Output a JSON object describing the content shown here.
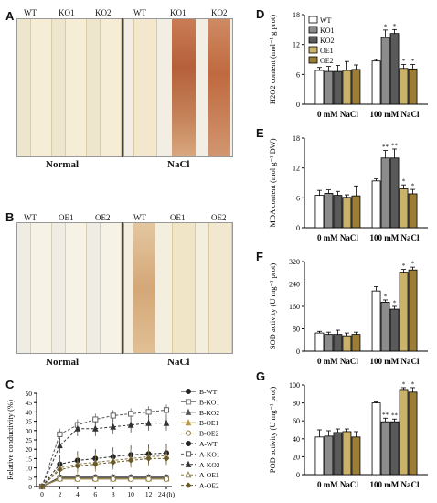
{
  "panelA": {
    "letter": "A",
    "left_labels": [
      "WT",
      "KO1",
      "KO2"
    ],
    "right_labels": [
      "WT",
      "KO1",
      "KO2"
    ],
    "left_caption": "Normal",
    "right_caption": "NaCl"
  },
  "panelB": {
    "letter": "B",
    "left_labels": [
      "WT",
      "OE1",
      "OE2"
    ],
    "right_labels": [
      "WT",
      "OE1",
      "OE2"
    ],
    "left_caption": "Normal",
    "right_caption": "NaCl"
  },
  "colors": {
    "white_bar": "#ffffff",
    "ko1": "#8c8c8c",
    "ko2": "#5a5a5a",
    "oe1": "#cbb26a",
    "oe2": "#9c7d35",
    "normal_leaf": "#f3ecd9",
    "nacl_leaf_bg": "#f1e3c6",
    "stain": "#b0542a"
  },
  "chart_data": [
    {
      "panel": "C",
      "type": "line",
      "ylabel": "Relative conductivity (%)",
      "x_ticks": [
        "0",
        "2",
        "4",
        "6",
        "8",
        "10",
        "12",
        "24 (h)"
      ],
      "x": [
        0,
        2,
        4,
        6,
        8,
        10,
        12,
        24
      ],
      "ylim": [
        0,
        50
      ],
      "y_ticks": [
        "0",
        "5",
        "10",
        "15",
        "20",
        "25",
        "30",
        "35",
        "40",
        "45",
        "50"
      ],
      "series": [
        {
          "name": "B-WT",
          "values": [
            0,
            5,
            5,
            5,
            5,
            5,
            5,
            5
          ],
          "marker": "filled-circle",
          "dash": false,
          "color": "#222"
        },
        {
          "name": "B-KO1",
          "values": [
            0,
            4.5,
            4.5,
            4.5,
            4.5,
            4.5,
            4.5,
            4.5
          ],
          "marker": "open-square",
          "dash": false,
          "color": "#777"
        },
        {
          "name": "B-KO2",
          "values": [
            0,
            4.8,
            4.8,
            4.8,
            4.8,
            4.8,
            4.8,
            4.8
          ],
          "marker": "filled-triangle",
          "dash": false,
          "color": "#555"
        },
        {
          "name": "B-OE1",
          "values": [
            0,
            4.2,
            4.2,
            4.2,
            4.2,
            4.2,
            4.2,
            4.2
          ],
          "marker": "filled-triangle",
          "dash": false,
          "color": "#b89a4a"
        },
        {
          "name": "B-OE2",
          "values": [
            0,
            4,
            4,
            4,
            4,
            4,
            4,
            4
          ],
          "marker": "open-circle",
          "dash": false,
          "color": "#8a7a4a"
        },
        {
          "name": "A-WT",
          "values": [
            0,
            12,
            14,
            15,
            16,
            17,
            17.5,
            18
          ],
          "marker": "filled-circle",
          "dash": true,
          "color": "#222"
        },
        {
          "name": "A-KO1",
          "values": [
            0,
            28,
            33,
            36,
            38,
            39,
            40,
            41
          ],
          "marker": "open-square",
          "dash": true,
          "color": "#555"
        },
        {
          "name": "A-KO2",
          "values": [
            0,
            22,
            31,
            31,
            32,
            33,
            34,
            34
          ],
          "marker": "filled-triangle",
          "dash": true,
          "color": "#333"
        },
        {
          "name": "A-OE1",
          "values": [
            0,
            10,
            12,
            13,
            14,
            15,
            16,
            16.5
          ],
          "marker": "open-triangle",
          "dash": true,
          "color": "#8a7a4a"
        },
        {
          "name": "A-OE2",
          "values": [
            0,
            9,
            11,
            12,
            13,
            14,
            15,
            15
          ],
          "marker": "filled-diamond",
          "dash": true,
          "color": "#6a5a2a"
        }
      ]
    },
    {
      "panel": "D",
      "type": "bar",
      "ylabel": "H2O2 content (mol⁻¹ g prot)",
      "categories": [
        "0 mM NaCl",
        "100 mM NaCl"
      ],
      "legend": [
        "WT",
        "KO1",
        "KO2",
        "OE1",
        "OE2"
      ],
      "ylim": [
        0,
        18
      ],
      "y_ticks": [
        "0",
        "6",
        "12",
        "18"
      ],
      "series": [
        {
          "name": "WT",
          "values": [
            6.8,
            8.7
          ],
          "errors": [
            0.6,
            0.3
          ]
        },
        {
          "name": "KO1",
          "values": [
            6.6,
            13.4
          ],
          "errors": [
            1.0,
            1.5
          ]
        },
        {
          "name": "KO2",
          "values": [
            6.6,
            14.2
          ],
          "errors": [
            1.2,
            0.8
          ]
        },
        {
          "name": "OE1",
          "values": [
            6.8,
            7.2
          ],
          "errors": [
            1.8,
            0.8
          ]
        },
        {
          "name": "OE2",
          "values": [
            7.0,
            7.1
          ],
          "errors": [
            0.9,
            0.9
          ]
        }
      ],
      "sig": [
        "",
        "*",
        "*",
        "*",
        "*"
      ]
    },
    {
      "panel": "E",
      "type": "bar",
      "ylabel": "MDA content (mol g⁻¹ DW)",
      "categories": [
        "0 mM NaCl",
        "100 mM NaCl"
      ],
      "ylim": [
        0,
        18
      ],
      "y_ticks": [
        "0",
        "6",
        "12",
        "18"
      ],
      "series": [
        {
          "name": "WT",
          "values": [
            6.5,
            9.4
          ],
          "errors": [
            1.0,
            0.4
          ]
        },
        {
          "name": "KO1",
          "values": [
            6.9,
            14.0
          ],
          "errors": [
            0.7,
            1.5
          ]
        },
        {
          "name": "KO2",
          "values": [
            6.5,
            14.0
          ],
          "errors": [
            0.8,
            1.8
          ]
        },
        {
          "name": "OE1",
          "values": [
            6.1,
            7.8
          ],
          "errors": [
            0.5,
            0.8
          ]
        },
        {
          "name": "OE2",
          "values": [
            6.4,
            6.8
          ],
          "errors": [
            2.0,
            0.9
          ]
        }
      ],
      "sig": [
        "",
        "**",
        "**",
        "*",
        "*"
      ]
    },
    {
      "panel": "F",
      "type": "bar",
      "ylabel": "SOD activity (U mg⁻¹ prot)",
      "categories": [
        "0 mM NaCl",
        "100 mM NaCl"
      ],
      "ylim": [
        0,
        320
      ],
      "y_ticks": [
        "0",
        "80",
        "160",
        "240",
        "320"
      ],
      "series": [
        {
          "name": "WT",
          "values": [
            65,
            215
          ],
          "errors": [
            6,
            15
          ]
        },
        {
          "name": "KO1",
          "values": [
            60,
            175
          ],
          "errors": [
            8,
            8
          ]
        },
        {
          "name": "KO2",
          "values": [
            60,
            150
          ],
          "errors": [
            15,
            10
          ]
        },
        {
          "name": "OE1",
          "values": [
            55,
            282
          ],
          "errors": [
            10,
            10
          ]
        },
        {
          "name": "OE2",
          "values": [
            60,
            290
          ],
          "errors": [
            8,
            10
          ]
        }
      ],
      "sig": [
        "",
        "*",
        "*",
        "*",
        "*"
      ]
    },
    {
      "panel": "G",
      "type": "bar",
      "ylabel": "POD activity (U mg⁻¹ prot)",
      "categories": [
        "0 mM NaCl",
        "100 mM NaCl"
      ],
      "ylim": [
        0,
        100
      ],
      "y_ticks": [
        "0",
        "20",
        "40",
        "60",
        "80",
        "100"
      ],
      "series": [
        {
          "name": "WT",
          "values": [
            42,
            80
          ],
          "errors": [
            8,
            1
          ]
        },
        {
          "name": "KO1",
          "values": [
            43,
            59
          ],
          "errors": [
            6,
            4
          ]
        },
        {
          "name": "KO2",
          "values": [
            47,
            59
          ],
          "errors": [
            4,
            3
          ]
        },
        {
          "name": "OE1",
          "values": [
            48,
            95
          ],
          "errors": [
            3,
            2
          ]
        },
        {
          "name": "OE2",
          "values": [
            42,
            92
          ],
          "errors": [
            6,
            5
          ]
        }
      ],
      "sig": [
        "",
        "**",
        "**",
        "*",
        "*"
      ]
    }
  ]
}
